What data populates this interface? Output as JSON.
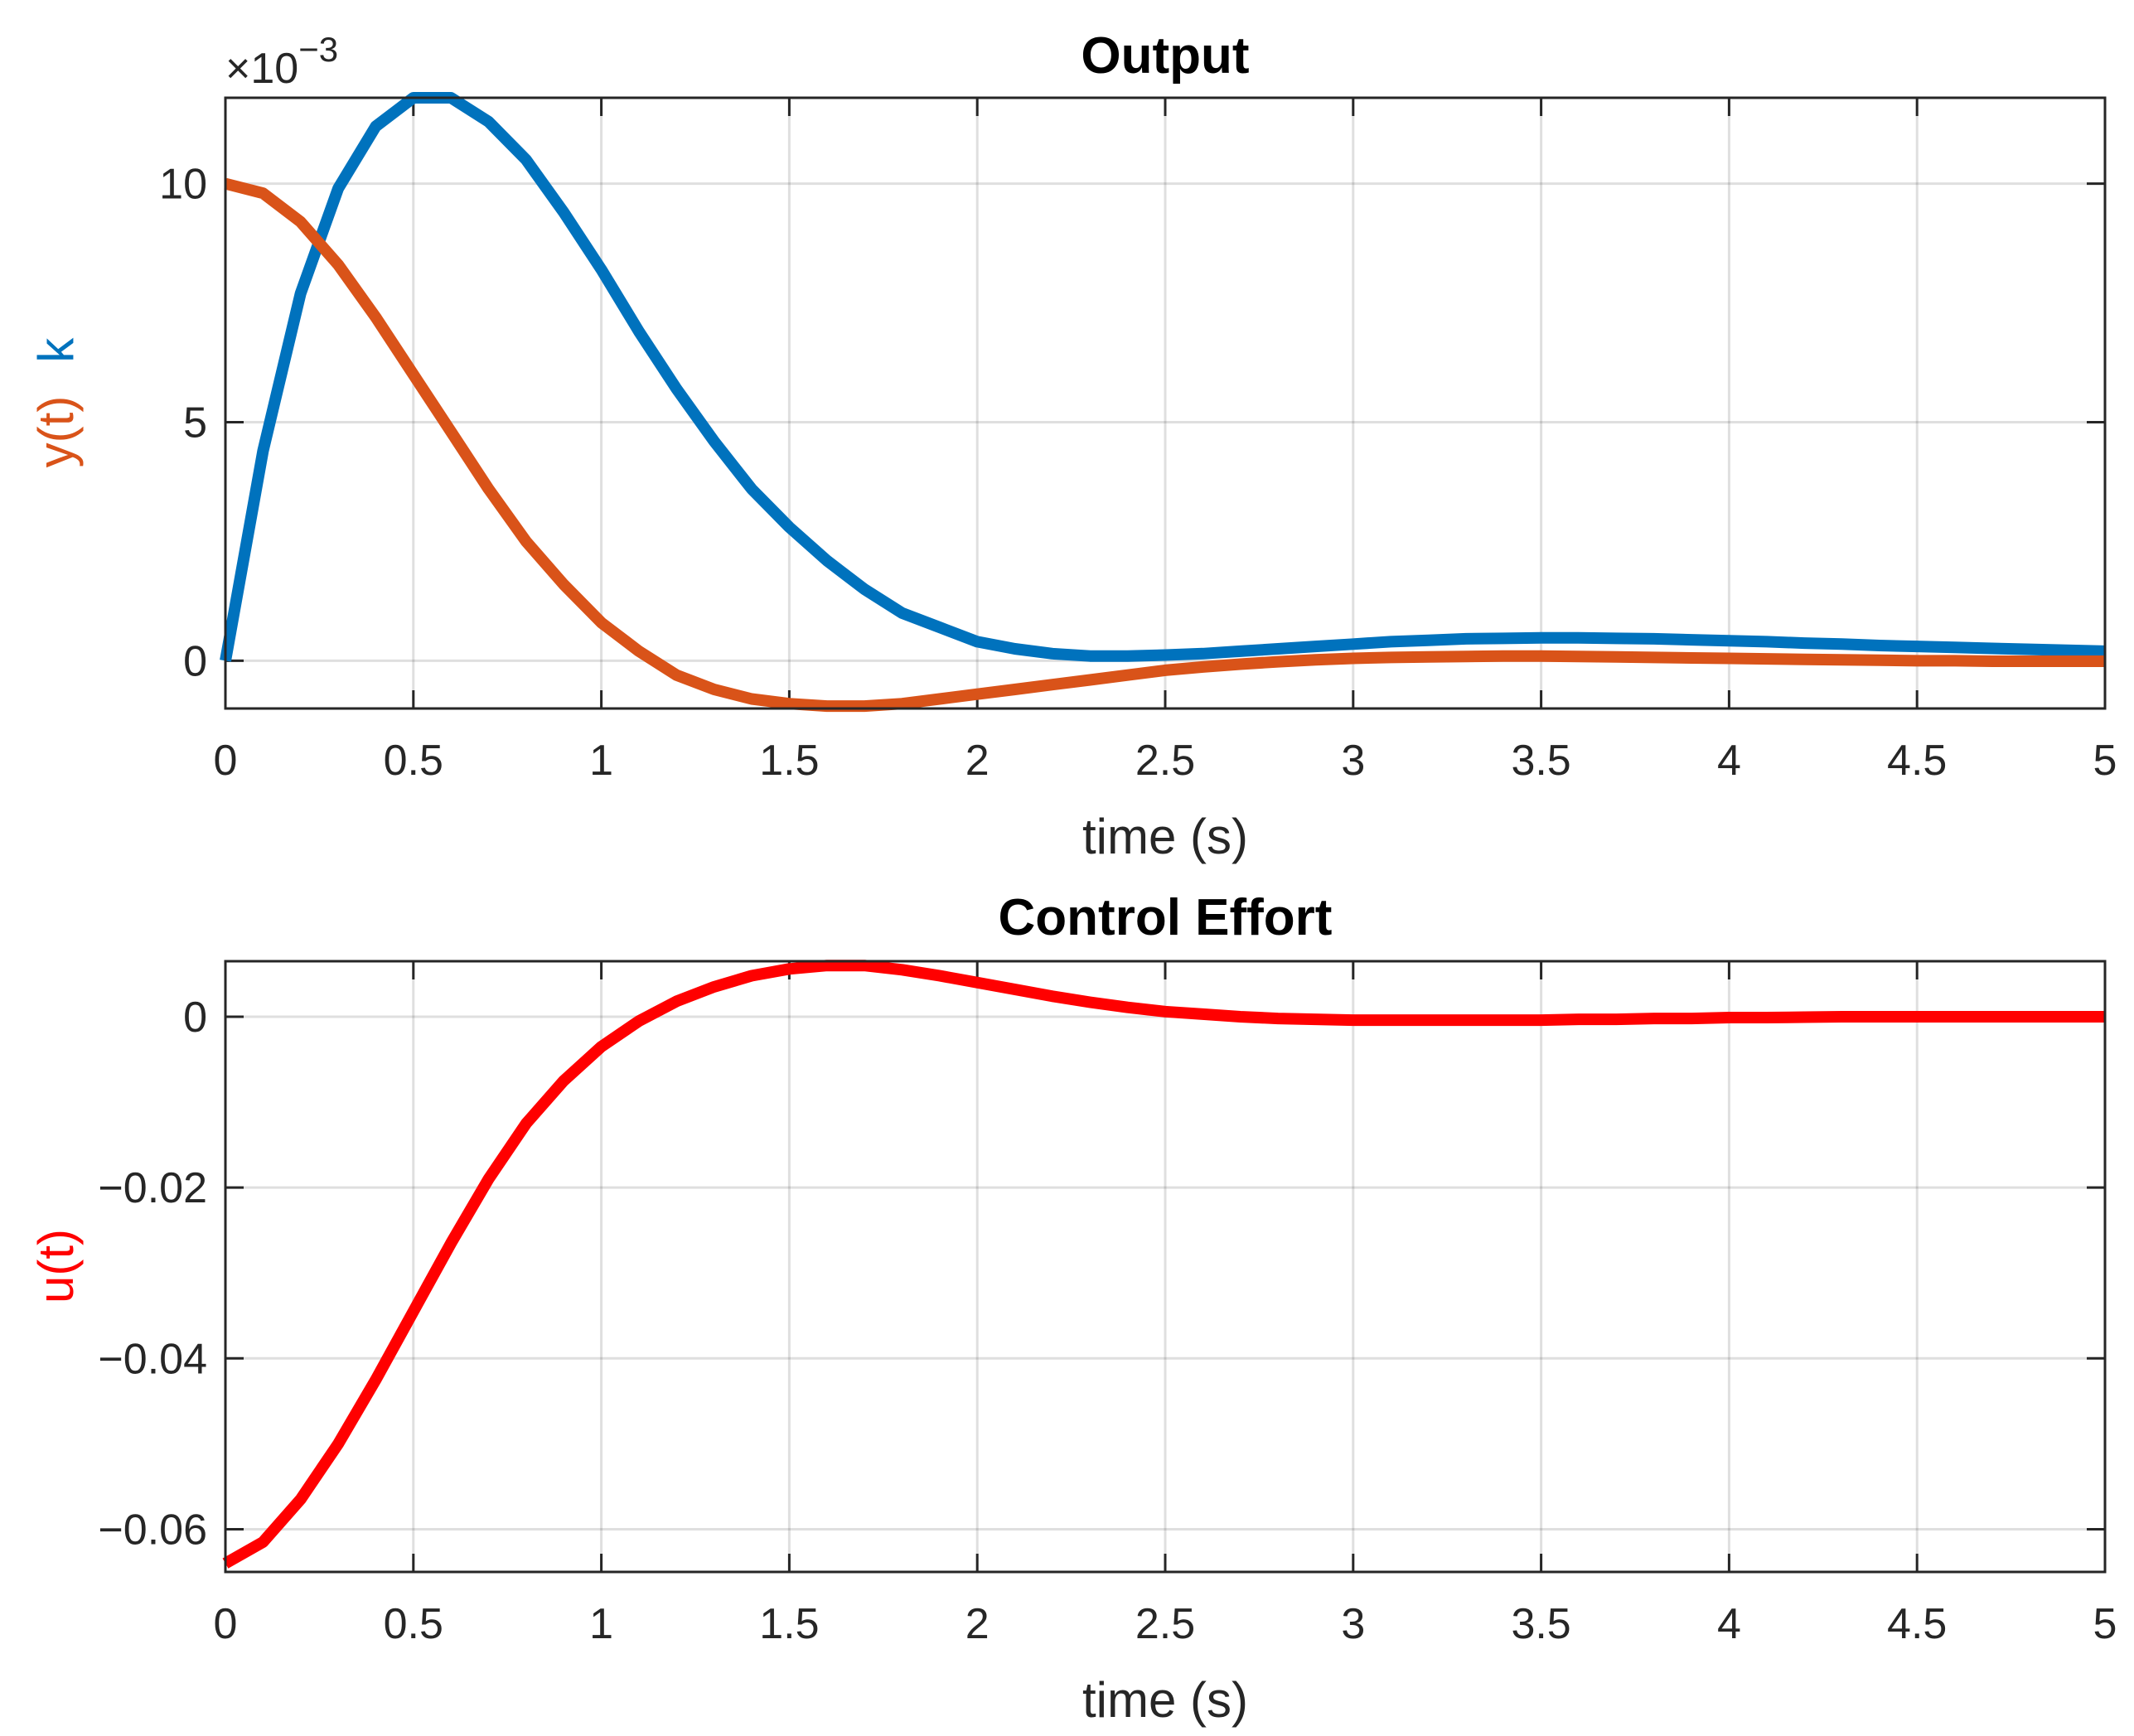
{
  "chart_data": [
    {
      "type": "line",
      "title": "Output",
      "xlabel": "time (s)",
      "ylabel_parts": [
        {
          "text": "y(t)",
          "color": "#D95319"
        },
        {
          "text": "k",
          "color": "#0072BD"
        }
      ],
      "xlim": [
        0,
        5
      ],
      "ylim": [
        -0.001,
        0.0118
      ],
      "x_ticks": [
        0,
        0.5,
        1,
        1.5,
        2,
        2.5,
        3,
        3.5,
        4,
        4.5,
        5
      ],
      "x_tick_labels": [
        "0",
        "0.5",
        "1",
        "1.5",
        "2",
        "2.5",
        "3",
        "3.5",
        "4",
        "4.5",
        "5"
      ],
      "y_ticks": [
        0,
        0.005,
        0.01
      ],
      "y_tick_labels": [
        "0",
        "5",
        "10"
      ],
      "y_exponent_label": {
        "base": "×10",
        "power": "−3"
      },
      "grid": true,
      "series": [
        {
          "name": "k",
          "color": "#0072BD",
          "x": [
            0,
            0.1,
            0.2,
            0.3,
            0.4,
            0.5,
            0.6,
            0.7,
            0.8,
            0.9,
            1.0,
            1.1,
            1.2,
            1.3,
            1.4,
            1.5,
            1.6,
            1.7,
            1.8,
            1.9,
            2.0,
            2.1,
            2.2,
            2.3,
            2.4,
            2.5,
            2.6,
            2.7,
            2.8,
            2.9,
            3.0,
            3.1,
            3.2,
            3.3,
            3.4,
            3.5,
            3.6,
            3.7,
            3.8,
            3.9,
            4.0,
            4.1,
            4.2,
            4.3,
            4.4,
            4.5,
            4.6,
            4.7,
            4.8,
            4.9,
            5.0
          ],
          "values": [
            0.0,
            0.0044,
            0.0077,
            0.0099,
            0.0112,
            0.0118,
            0.0118,
            0.0113,
            0.0105,
            0.0094,
            0.0082,
            0.0069,
            0.0057,
            0.0046,
            0.0036,
            0.0028,
            0.0021,
            0.0015,
            0.001,
            0.0007,
            0.0004,
            0.00025,
            0.00015,
            0.0001,
            0.0001,
            0.00012,
            0.00015,
            0.0002,
            0.00025,
            0.0003,
            0.00035,
            0.0004,
            0.00043,
            0.00046,
            0.00047,
            0.00048,
            0.00048,
            0.00047,
            0.00046,
            0.00044,
            0.00042,
            0.0004,
            0.00037,
            0.00035,
            0.00032,
            0.0003,
            0.00028,
            0.00026,
            0.00024,
            0.00022,
            0.0002
          ]
        },
        {
          "name": "y(t)",
          "color": "#D95319",
          "x": [
            0,
            0.1,
            0.2,
            0.3,
            0.4,
            0.5,
            0.6,
            0.7,
            0.8,
            0.9,
            1.0,
            1.1,
            1.2,
            1.3,
            1.4,
            1.5,
            1.6,
            1.7,
            1.8,
            1.9,
            2.0,
            2.1,
            2.2,
            2.3,
            2.4,
            2.5,
            2.6,
            2.7,
            2.8,
            2.9,
            3.0,
            3.1,
            3.2,
            3.3,
            3.4,
            3.5,
            3.6,
            3.7,
            3.8,
            3.9,
            4.0,
            4.1,
            4.2,
            4.3,
            4.4,
            4.5,
            4.6,
            4.7,
            4.8,
            4.9,
            5.0
          ],
          "values": [
            0.01,
            0.0098,
            0.0092,
            0.0083,
            0.0072,
            0.006,
            0.0048,
            0.0036,
            0.0025,
            0.0016,
            0.0008,
            0.0002,
            -0.0003,
            -0.0006,
            -0.0008,
            -0.0009,
            -0.00095,
            -0.00095,
            -0.0009,
            -0.0008,
            -0.0007,
            -0.0006,
            -0.0005,
            -0.0004,
            -0.0003,
            -0.0002,
            -0.00013,
            -7e-05,
            -2e-05,
            2e-05,
            5e-05,
            7e-05,
            8e-05,
            9e-05,
            0.0001,
            0.0001,
            9e-05,
            8e-05,
            7e-05,
            6e-05,
            5e-05,
            4e-05,
            3e-05,
            2e-05,
            1e-05,
            0.0,
            0.0,
            -1e-05,
            -1e-05,
            -1e-05,
            -1e-05
          ]
        }
      ]
    },
    {
      "type": "line",
      "title": "Control Effort",
      "xlabel": "time (s)",
      "ylabel_parts": [
        {
          "text": "u(t)",
          "color": "#FF0000"
        }
      ],
      "xlim": [
        0,
        5
      ],
      "ylim": [
        -0.065,
        0.0065
      ],
      "x_ticks": [
        0,
        0.5,
        1,
        1.5,
        2,
        2.5,
        3,
        3.5,
        4,
        4.5,
        5
      ],
      "x_tick_labels": [
        "0",
        "0.5",
        "1",
        "1.5",
        "2",
        "2.5",
        "3",
        "3.5",
        "4",
        "4.5",
        "5"
      ],
      "y_ticks": [
        -0.06,
        -0.04,
        -0.02,
        0
      ],
      "y_tick_labels": [
        "−0.06",
        "−0.04",
        "−0.02",
        "0"
      ],
      "grid": true,
      "series": [
        {
          "name": "u(t)",
          "color": "#FF0000",
          "x": [
            0,
            0.1,
            0.2,
            0.3,
            0.4,
            0.5,
            0.6,
            0.7,
            0.8,
            0.9,
            1.0,
            1.1,
            1.2,
            1.3,
            1.4,
            1.5,
            1.6,
            1.7,
            1.8,
            1.9,
            2.0,
            2.1,
            2.2,
            2.3,
            2.4,
            2.5,
            2.6,
            2.7,
            2.8,
            2.9,
            3.0,
            3.1,
            3.2,
            3.3,
            3.4,
            3.5,
            3.6,
            3.7,
            3.8,
            3.9,
            4.0,
            4.1,
            4.2,
            4.3,
            4.4,
            4.5,
            4.6,
            4.7,
            4.8,
            4.9,
            5.0
          ],
          "values": [
            -0.064,
            -0.0615,
            -0.0565,
            -0.05,
            -0.0425,
            -0.0345,
            -0.0265,
            -0.019,
            -0.0125,
            -0.0075,
            -0.0035,
            -0.0005,
            0.0018,
            0.0035,
            0.0048,
            0.0056,
            0.006,
            0.006,
            0.0055,
            0.0048,
            0.004,
            0.0032,
            0.0024,
            0.0017,
            0.0011,
            0.0006,
            0.0003,
            0.0,
            -0.0002,
            -0.0003,
            -0.0004,
            -0.0004,
            -0.0004,
            -0.0004,
            -0.0004,
            -0.0004,
            -0.0003,
            -0.0003,
            -0.0002,
            -0.0002,
            -0.0001,
            -0.0001,
            -5e-05,
            0.0,
            0.0,
            0.0,
            0.0,
            0.0,
            0.0,
            0.0,
            0.0
          ]
        }
      ]
    }
  ]
}
